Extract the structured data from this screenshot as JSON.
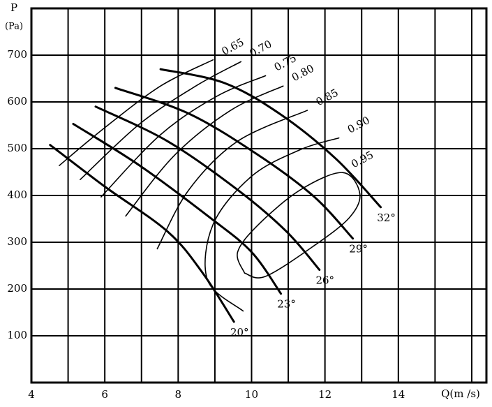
{
  "chart_data": {
    "type": "line",
    "y_label_top": "P",
    "y_label": "(Pa)",
    "x_label": "Q(m /s)",
    "xlim": [
      4,
      16.4
    ],
    "xticks": [
      4,
      6,
      8,
      10,
      12,
      14
    ],
    "xgrid_minor": [
      5,
      7,
      9,
      11,
      13,
      15,
      16
    ],
    "ylim": [
      0,
      800
    ],
    "yticks": [
      100,
      200,
      300,
      400,
      500,
      600,
      700
    ],
    "grid": true,
    "series": [
      {
        "name": "20°",
        "color": "#000000",
        "line_width": 3,
        "x": [
          4.51,
          6.0,
          7.71,
          8.67,
          9.52
        ],
        "values": [
          508,
          419,
          323,
          234,
          130
        ]
      },
      {
        "name": "23°",
        "color": "#000000",
        "line_width": 3,
        "x": [
          5.14,
          6.95,
          8.86,
          10.0,
          10.8
        ],
        "values": [
          553,
          464,
          353,
          279,
          190
        ]
      },
      {
        "name": "26°",
        "color": "#000000",
        "line_width": 3,
        "x": [
          5.75,
          7.71,
          9.62,
          10.95,
          11.85
        ],
        "values": [
          590,
          516,
          412,
          323,
          241
        ]
      },
      {
        "name": "29°",
        "color": "#000000",
        "line_width": 3,
        "x": [
          6.29,
          8.29,
          10.19,
          11.71,
          12.76
        ],
        "values": [
          630,
          575,
          486,
          397,
          308
        ]
      },
      {
        "name": "32°",
        "color": "#000000",
        "line_width": 3,
        "x": [
          7.52,
          9.24,
          10.76,
          12.29,
          13.52
        ],
        "values": [
          670,
          641,
          575,
          479,
          375
        ]
      },
      {
        "name": "0.65",
        "color": "#000000",
        "line_width": 1.6,
        "x": [
          4.76,
          6.0,
          7.52,
          8.95
        ],
        "values": [
          464,
          545,
          634,
          690
        ]
      },
      {
        "name": "0.70",
        "color": "#000000",
        "line_width": 1.6,
        "x": [
          5.33,
          6.95,
          8.48,
          9.71
        ],
        "values": [
          434,
          553,
          634,
          686
        ]
      },
      {
        "name": "0.75",
        "color": "#000000",
        "line_width": 1.6,
        "x": [
          5.9,
          7.52,
          9.05,
          10.38
        ],
        "values": [
          397,
          530,
          612,
          656
        ]
      },
      {
        "name": "0.80",
        "color": "#000000",
        "line_width": 1.6,
        "x": [
          6.57,
          7.9,
          9.43,
          10.86
        ],
        "values": [
          356,
          486,
          582,
          634
        ]
      },
      {
        "name": "0.85",
        "color": "#000000",
        "line_width": 1.6,
        "x": [
          7.43,
          8.29,
          9.62,
          11.52
        ],
        "values": [
          286,
          412,
          516,
          582
        ]
      },
      {
        "name": "0.90",
        "color": "#000000",
        "line_width": 1.6,
        "x": [
          9.77,
          8.8,
          8.95,
          10.0,
          11.33,
          12.38
        ],
        "values": [
          153,
          219,
          338,
          441,
          498,
          523
        ]
      },
      {
        "name": "0.95",
        "color": "#000000",
        "line_width": 1.6,
        "x": [
          9.81,
          9.62,
          10.19,
          11.33,
          12.48,
          12.95,
          12.67,
          11.71,
          10.38,
          9.81
        ],
        "values": [
          234,
          279,
          338,
          412,
          449,
          404,
          353,
          293,
          227,
          234
        ]
      }
    ]
  }
}
